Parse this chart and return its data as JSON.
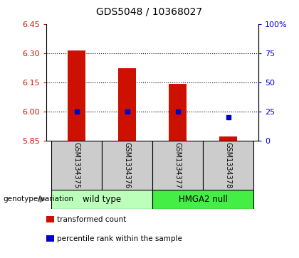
{
  "title": "GDS5048 / 10368027",
  "samples": [
    "GSM1334375",
    "GSM1334376",
    "GSM1334377",
    "GSM1334378"
  ],
  "bar_values": [
    6.315,
    6.225,
    6.143,
    5.873
  ],
  "percentile_values": [
    25,
    25,
    25,
    20
  ],
  "ylim_left": [
    5.85,
    6.45
  ],
  "yticks_left": [
    5.85,
    6.0,
    6.15,
    6.3,
    6.45
  ],
  "ylim_right": [
    0,
    100
  ],
  "yticks_right": [
    0,
    25,
    50,
    75,
    100
  ],
  "ytick_labels_right": [
    "0",
    "25",
    "50",
    "75",
    "100%"
  ],
  "bar_color": "#cc1100",
  "percentile_color": "#0000cc",
  "bar_bottom": 5.85,
  "groups": [
    {
      "label": "wild type",
      "indices": [
        0,
        1
      ],
      "color": "#bbffbb"
    },
    {
      "label": "HMGA2 null",
      "indices": [
        2,
        3
      ],
      "color": "#44ee44"
    }
  ],
  "dotted_lines": [
    6.0,
    6.15,
    6.3
  ],
  "legend_items": [
    {
      "label": "transformed count",
      "color": "#cc1100"
    },
    {
      "label": "percentile rank within the sample",
      "color": "#0000cc"
    }
  ],
  "genotype_label": "genotype/variation",
  "label_area_color": "#cccccc",
  "background_color": "#ffffff",
  "plot_facecolor": "#ffffff"
}
